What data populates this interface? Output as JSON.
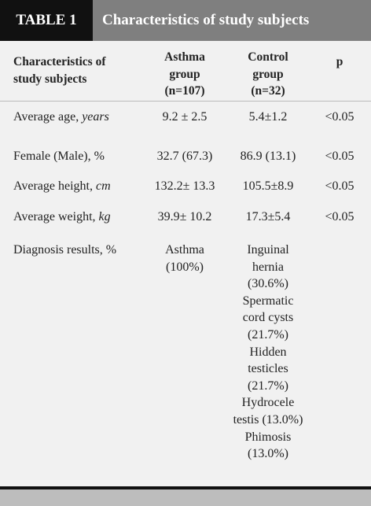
{
  "header": {
    "label": "TABLE 1",
    "title": "Characteristics of study subjects"
  },
  "table": {
    "columns": [
      "Characteristics of study subjects",
      "Asthma group (n=107)",
      "Control group (n=32)",
      "p"
    ],
    "rows": [
      {
        "label": "Average age,",
        "unit": "years",
        "asthma": "9.2 ± 2.5",
        "control": "5.4±1.2",
        "p": "<0.05"
      },
      {
        "label": "Female (Male), %",
        "asthma": "32.7 (67.3)",
        "control": "86.9 (13.1)",
        "p": "<0.05"
      },
      {
        "label": "Average height,",
        "unit": "cm",
        "asthma": "132.2± 13.3",
        "control": "105.5±8.9",
        "p": "<0.05"
      },
      {
        "label": "Average weight,",
        "unit": "kg",
        "asthma": "39.9± 10.2",
        "control": "17.3±5.4",
        "p": "<0.05"
      }
    ],
    "diagnosis": {
      "label": "Diagnosis results, %",
      "asthma": "Asthma (100%)",
      "control": [
        "Inguinal hernia (30.6%)",
        "Spermatic cord cysts (21.7%)",
        "Hidden testicles (21.7%)",
        "Hydrocele testis (13.0%)",
        "Phimosis (13.0%)"
      ]
    }
  }
}
